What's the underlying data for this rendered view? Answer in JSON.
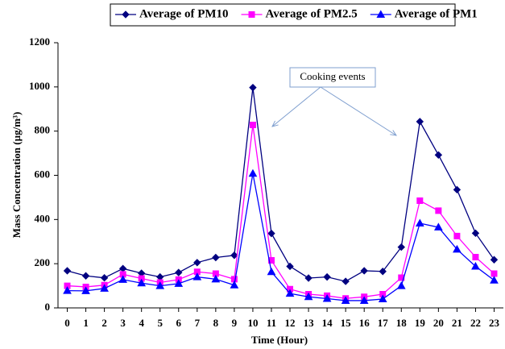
{
  "chart_data": {
    "type": "line",
    "x": [
      0,
      1,
      2,
      3,
      4,
      5,
      6,
      7,
      8,
      9,
      10,
      11,
      12,
      13,
      14,
      15,
      16,
      17,
      18,
      19,
      20,
      21,
      22,
      23
    ],
    "xlim": [
      -0.5,
      23.5
    ],
    "xticks": [
      0,
      1,
      2,
      3,
      4,
      5,
      6,
      7,
      8,
      9,
      10,
      11,
      12,
      13,
      14,
      15,
      16,
      17,
      18,
      19,
      20,
      21,
      22,
      23
    ],
    "ylim": [
      0,
      1200
    ],
    "yticks": [
      0,
      200,
      400,
      600,
      800,
      1000,
      1200
    ],
    "xlabel": "Time (Hour)",
    "ylabel": "Mass Concentration (µg/m³)",
    "annotation": "Cooking events",
    "grid": false,
    "legend": "top",
    "series": [
      {
        "name": "Average of PM10",
        "color": "#000080",
        "marker": "diamond",
        "values": [
          168,
          145,
          136,
          178,
          157,
          140,
          160,
          205,
          228,
          238,
          997,
          337,
          188,
          135,
          140,
          120,
          168,
          165,
          275,
          843,
          692,
          535,
          338,
          218
        ]
      },
      {
        "name": "Average of PM2.5",
        "color": "#ff00ff",
        "marker": "square",
        "values": [
          100,
          95,
          103,
          152,
          133,
          115,
          128,
          163,
          155,
          130,
          828,
          215,
          85,
          62,
          55,
          43,
          50,
          62,
          137,
          485,
          440,
          325,
          230,
          155
        ]
      },
      {
        "name": "Average of PM1",
        "color": "#0000ff",
        "marker": "triangle",
        "values": [
          78,
          77,
          88,
          128,
          112,
          100,
          110,
          140,
          130,
          103,
          608,
          163,
          65,
          50,
          42,
          33,
          33,
          40,
          100,
          383,
          365,
          265,
          188,
          125
        ]
      }
    ]
  }
}
